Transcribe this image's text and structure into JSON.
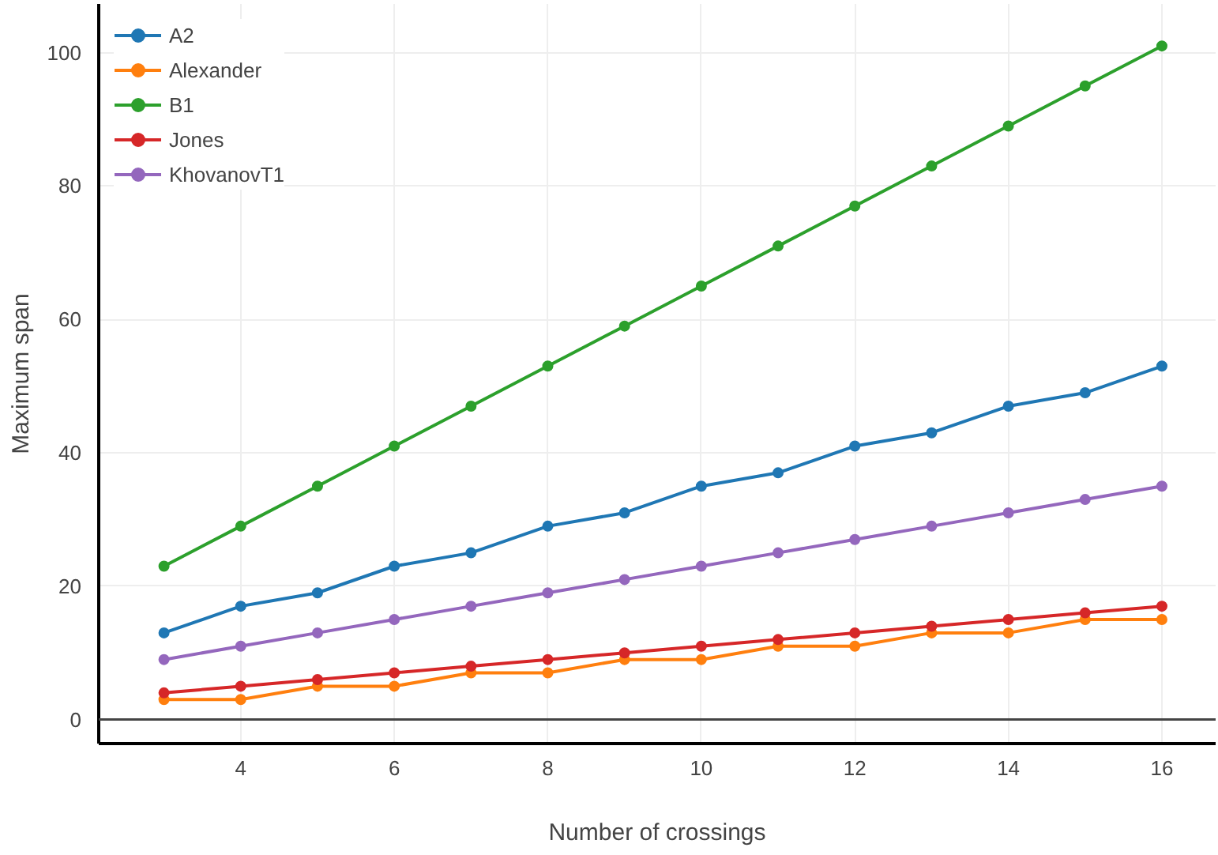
{
  "chart_data": {
    "type": "line",
    "xlabel": "Number of crossings",
    "ylabel": "Maximum span",
    "x": [
      3,
      4,
      5,
      6,
      7,
      8,
      9,
      10,
      11,
      12,
      13,
      14,
      15,
      16
    ],
    "series": [
      {
        "name": "A2",
        "color": "#1f77b4",
        "values": [
          13,
          17,
          19,
          23,
          25,
          29,
          31,
          35,
          37,
          41,
          43,
          47,
          49,
          53
        ]
      },
      {
        "name": "Alexander",
        "color": "#ff7f0e",
        "values": [
          3,
          3,
          5,
          5,
          7,
          7,
          9,
          9,
          11,
          11,
          13,
          13,
          15,
          15
        ]
      },
      {
        "name": "B1",
        "color": "#2ca02c",
        "values": [
          23,
          29,
          35,
          41,
          47,
          53,
          59,
          65,
          71,
          77,
          83,
          89,
          95,
          101
        ]
      },
      {
        "name": "Jones",
        "color": "#d62728",
        "values": [
          4,
          5,
          6,
          7,
          8,
          9,
          10,
          11,
          12,
          13,
          14,
          15,
          16,
          17
        ]
      },
      {
        "name": "KhovanovT1",
        "color": "#9467bd",
        "values": [
          9,
          11,
          13,
          15,
          17,
          19,
          21,
          23,
          25,
          27,
          29,
          31,
          33,
          35
        ]
      }
    ],
    "xlim": [
      2.15,
      16.7
    ],
    "ylim": [
      -3.6,
      107.3
    ],
    "xticks": [
      4,
      6,
      8,
      10,
      12,
      14,
      16
    ],
    "yticks": [
      0,
      20,
      40,
      60,
      80,
      100
    ],
    "ref_lines": [
      {
        "axis": "y",
        "value": 0,
        "color": "#444444"
      }
    ],
    "grid": true,
    "legend": "top left",
    "marker": "circle",
    "line_style": "solid"
  }
}
